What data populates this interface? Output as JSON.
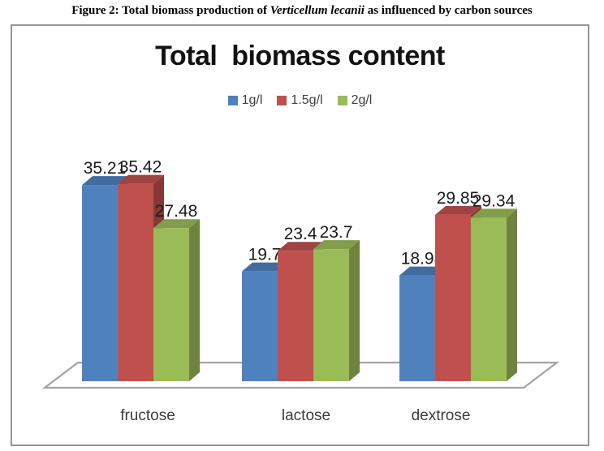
{
  "caption": {
    "prefix": "Figure 2: Total biomass production of ",
    "species": "Verticellum lecanii",
    "suffix": " as influenced by carbon sources"
  },
  "chart_data": {
    "type": "bar",
    "style": "3d-clustered-column",
    "title": "Total  biomass content",
    "categories": [
      "fructose",
      "lactose",
      "dextrose"
    ],
    "series": [
      {
        "name": "1g/l",
        "color": "#4f81bd",
        "values": [
          35.21,
          19.7,
          18.98
        ]
      },
      {
        "name": "1.5g/l",
        "color": "#c0504d",
        "values": [
          35.42,
          23.4,
          29.85
        ]
      },
      {
        "name": "2g/l",
        "color": "#9bbb59",
        "values": [
          27.48,
          23.7,
          29.34
        ]
      }
    ],
    "data_labels": true,
    "legend_position": "top",
    "xlabel": "",
    "ylabel": "",
    "ylim": [
      0,
      40
    ],
    "axes_visible": false,
    "gridlines": false,
    "floor_outline_color": "#a3a3a3"
  }
}
